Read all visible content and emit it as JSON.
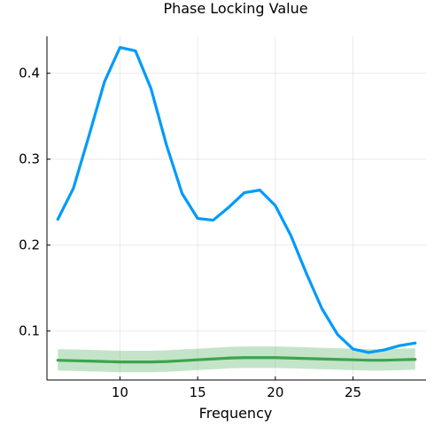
{
  "chart_data": {
    "type": "line",
    "title": "Phase Locking Value",
    "xlabel": "Frequency",
    "ylabel": "",
    "xlim": [
      5.3,
      29.7
    ],
    "ylim": [
      0.043,
      0.443
    ],
    "xticks": [
      10,
      15,
      20,
      25
    ],
    "yticks": [
      0.1,
      0.2,
      0.3,
      0.4
    ],
    "xtick_labels": [
      "10",
      "15",
      "20",
      "25"
    ],
    "ytick_labels": [
      "0.1",
      "0.2",
      "0.3",
      "0.4"
    ],
    "grid": true,
    "legend": "none",
    "x": [
      6,
      7,
      8,
      9,
      10,
      11,
      12,
      13,
      14,
      15,
      16,
      17,
      18,
      19,
      20,
      21,
      22,
      23,
      24,
      25,
      26,
      27,
      28,
      29
    ],
    "series": [
      {
        "color": "#009AFA",
        "values": [
          0.23,
          0.266,
          0.327,
          0.39,
          0.43,
          0.426,
          0.382,
          0.316,
          0.26,
          0.231,
          0.229,
          0.244,
          0.261,
          0.264,
          0.246,
          0.211,
          0.167,
          0.126,
          0.096,
          0.079,
          0.075,
          0.078,
          0.083,
          0.086
        ]
      },
      {
        "color": "#3DA44D",
        "values": [
          0.066,
          0.0655,
          0.065,
          0.0645,
          0.064,
          0.064,
          0.064,
          0.0645,
          0.0655,
          0.0665,
          0.0675,
          0.0685,
          0.069,
          0.069,
          0.069,
          0.0685,
          0.068,
          0.0675,
          0.067,
          0.0665,
          0.066,
          0.066,
          0.0665,
          0.067
        ],
        "band_lower": [
          0.054,
          0.0535,
          0.053,
          0.0525,
          0.052,
          0.052,
          0.052,
          0.0525,
          0.0535,
          0.0545,
          0.0555,
          0.0565,
          0.057,
          0.057,
          0.057,
          0.0565,
          0.056,
          0.0555,
          0.055,
          0.0545,
          0.054,
          0.054,
          0.0545,
          0.055
        ],
        "band_upper": [
          0.079,
          0.0785,
          0.078,
          0.0775,
          0.077,
          0.077,
          0.077,
          0.0775,
          0.0785,
          0.0795,
          0.0805,
          0.0815,
          0.082,
          0.082,
          0.082,
          0.0815,
          0.081,
          0.0805,
          0.08,
          0.0795,
          0.079,
          0.079,
          0.0795,
          0.08
        ],
        "band_color": "#3DA44D"
      }
    ]
  }
}
